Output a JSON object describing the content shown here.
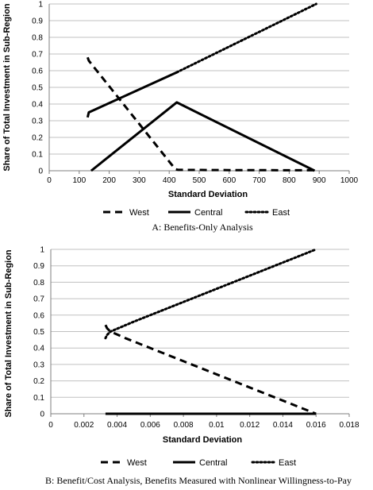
{
  "chart_data": [
    {
      "type": "line",
      "title": "",
      "xlabel": "Standard Deviation",
      "ylabel": "Share of Total Investment in Sub-Region",
      "caption": "A: Benefits-Only Analysis",
      "xlim": [
        0,
        1000
      ],
      "ylim": [
        0,
        1
      ],
      "x_ticks": [
        "0",
        "100",
        "200",
        "300",
        "400",
        "500",
        "600",
        "700",
        "800",
        "900",
        "1000"
      ],
      "y_ticks": [
        "0",
        "0.1",
        "0.2",
        "0.3",
        "0.4",
        "0.5",
        "0.6",
        "0.7",
        "0.8",
        "0.9",
        "1"
      ],
      "grid": "horizontal",
      "legend_position": "bottom",
      "series": [
        {
          "name": "West",
          "style": "dashed",
          "points": [
            [
              128,
              0.68
            ],
            [
              132,
              0.66
            ],
            [
              420,
              0.01
            ],
            [
              430,
              0.005
            ],
            [
              600,
              0.004
            ],
            [
              880,
              0.003
            ],
            [
              890,
              0.0
            ]
          ]
        },
        {
          "name": "Central",
          "style": "solid",
          "points": [
            [
              128,
              0.32
            ],
            [
              132,
              0.35
            ],
            [
              425,
              0.59
            ],
            [
              140,
              0.0
            ],
            [
              425,
              0.41
            ],
            [
              885,
              0.0
            ]
          ],
          "segments": [
            [
              0,
              3
            ],
            [
              3,
              6
            ]
          ]
        },
        {
          "name": "East",
          "style": "dotted",
          "points": [
            [
              425,
              0.59
            ],
            [
              890,
              1.0
            ]
          ]
        }
      ]
    },
    {
      "type": "line",
      "title": "",
      "xlabel": "Standard Deviation",
      "ylabel": "Share of Total Investment in Sub-Region",
      "caption": "B: Benefit/Cost Analysis, Benefits Measured with Nonlinear Willingness-to-Pay",
      "xlim": [
        0,
        0.018
      ],
      "ylim": [
        0,
        1
      ],
      "x_ticks": [
        "0",
        "0.002",
        "0.004",
        "0.006",
        "0.008",
        "0.01",
        "0.012",
        "0.014",
        "0.016",
        "0.018"
      ],
      "y_ticks": [
        "0",
        "0.1",
        "0.2",
        "0.3",
        "0.4",
        "0.5",
        "0.6",
        "0.7",
        "0.8",
        "0.9",
        "1"
      ],
      "grid": "horizontal",
      "legend_position": "bottom",
      "series": [
        {
          "name": "West",
          "style": "dashed",
          "points": [
            [
              0.0033,
              0.54
            ],
            [
              0.0034,
              0.52
            ],
            [
              0.0036,
              0.5
            ],
            [
              0.0045,
              0.46
            ],
            [
              0.016,
              0.0
            ]
          ]
        },
        {
          "name": "Central",
          "style": "solid",
          "points": [
            [
              0.0033,
              0.0
            ],
            [
              0.016,
              0.0
            ]
          ]
        },
        {
          "name": "East",
          "style": "dotted",
          "points": [
            [
              0.0033,
              0.46
            ],
            [
              0.0034,
              0.48
            ],
            [
              0.0036,
              0.5
            ],
            [
              0.005,
              0.56
            ],
            [
              0.016,
              1.0
            ]
          ]
        }
      ]
    }
  ]
}
